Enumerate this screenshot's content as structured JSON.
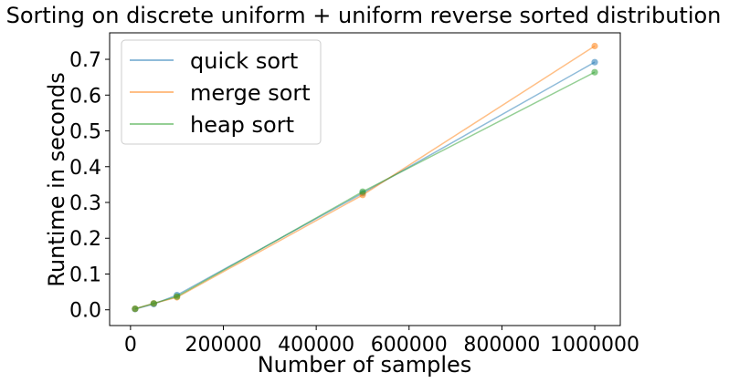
{
  "chart_data": {
    "type": "line",
    "title": "Sorting on discrete uniform + uniform reverse sorted distribution",
    "xlabel": "Number of samples",
    "ylabel": "Runtime in seconds",
    "x": [
      10000,
      50000,
      100000,
      500000,
      1000000
    ],
    "xlim": [
      -45000,
      1055000
    ],
    "ylim": [
      -0.044,
      0.774
    ],
    "xticks": [
      0,
      200000,
      400000,
      600000,
      800000,
      1000000
    ],
    "xtick_labels": [
      "0",
      "200000",
      "400000",
      "600000",
      "800000",
      "1000000"
    ],
    "yticks": [
      0.0,
      0.1,
      0.2,
      0.3,
      0.4,
      0.5,
      0.6,
      0.7
    ],
    "ytick_labels": [
      "0.0",
      "0.1",
      "0.2",
      "0.3",
      "0.4",
      "0.5",
      "0.6",
      "0.7"
    ],
    "grid": false,
    "legend_position": "upper-left",
    "series": [
      {
        "name": "quick sort",
        "color": "#1f77b4",
        "values": [
          0.002,
          0.016,
          0.041,
          0.326,
          0.692
        ]
      },
      {
        "name": "merge sort",
        "color": "#ff7f0e",
        "values": [
          0.003,
          0.018,
          0.035,
          0.321,
          0.737
        ]
      },
      {
        "name": "heap sort",
        "color": "#2ca02c",
        "values": [
          0.003,
          0.018,
          0.037,
          0.33,
          0.664
        ]
      }
    ]
  }
}
